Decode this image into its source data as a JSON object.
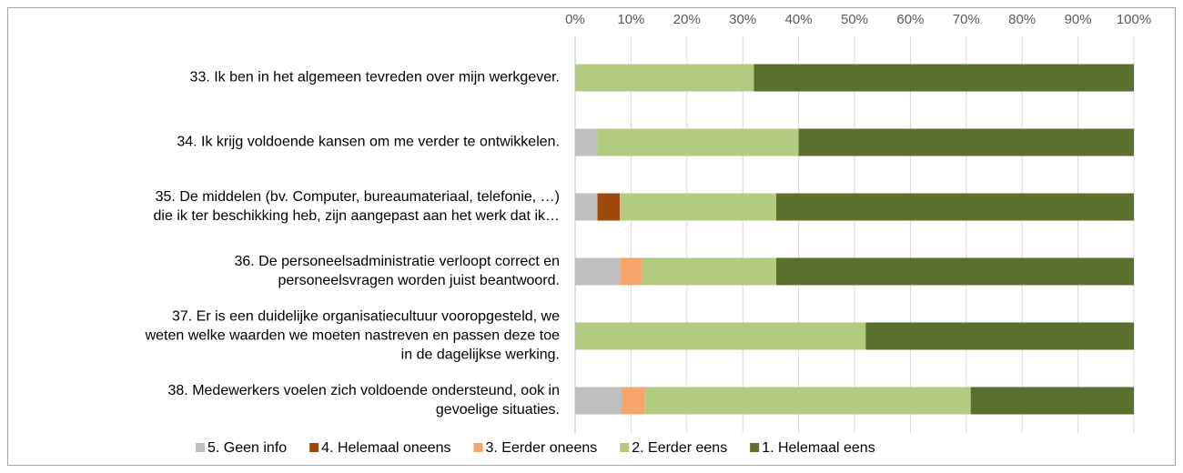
{
  "chart_data": {
    "type": "stacked_bar_horizontal",
    "categories": [
      [
        "33. Ik ben in het algemeen tevreden over mijn werkgever."
      ],
      [
        "34. Ik krijg voldoende kansen om me verder te ontwikkelen."
      ],
      [
        "35. De middelen (bv. Computer, bureaumateriaal, telefonie, …)",
        "die ik ter beschikking heb, zijn aangepast aan het werk dat ik…"
      ],
      [
        "36. De personeelsadministratie verloopt correct en",
        "personeelsvragen worden juist beantwoord."
      ],
      [
        "37. Er is een duidelijke organisatiecultuur vooropgesteld, we",
        "weten welke waarden we moeten nastreven en passen deze toe",
        "in de dagelijkse werking."
      ],
      [
        "38. Medewerkers voelen zich voldoende ondersteund, ook in",
        "gevoelige situaties."
      ]
    ],
    "series": [
      {
        "name": "5. Geen info",
        "color": "#bfbfbf",
        "values": [
          0,
          4,
          4,
          8,
          0,
          8.3
        ]
      },
      {
        "name": "4. Helemaal oneens",
        "color": "#9e480e",
        "values": [
          0,
          0,
          4,
          0,
          0,
          0
        ]
      },
      {
        "name": "3. Eerder oneens",
        "color": "#f4a56a",
        "values": [
          0,
          0,
          0,
          4,
          0,
          4.2
        ]
      },
      {
        "name": "2. Eerder eens",
        "color": "#b3cb80",
        "values": [
          32,
          36,
          28,
          24,
          52,
          58.3
        ]
      },
      {
        "name": "1. Helemaal eens",
        "color": "#5b6f2f",
        "values": [
          68,
          60,
          64,
          64,
          48,
          29.2
        ]
      }
    ],
    "xlim": [
      0,
      100
    ],
    "xticks": [
      {
        "value": 0,
        "label": "0%"
      },
      {
        "value": 10,
        "label": "10%"
      },
      {
        "value": 20,
        "label": "20%"
      },
      {
        "value": 30,
        "label": "30%"
      },
      {
        "value": 40,
        "label": "40%"
      },
      {
        "value": 50,
        "label": "50%"
      },
      {
        "value": 60,
        "label": "60%"
      },
      {
        "value": 70,
        "label": "70%"
      },
      {
        "value": 80,
        "label": "80%"
      },
      {
        "value": 90,
        "label": "90%"
      },
      {
        "value": 100,
        "label": "100%"
      }
    ],
    "grid": true,
    "legend": "bottom"
  }
}
